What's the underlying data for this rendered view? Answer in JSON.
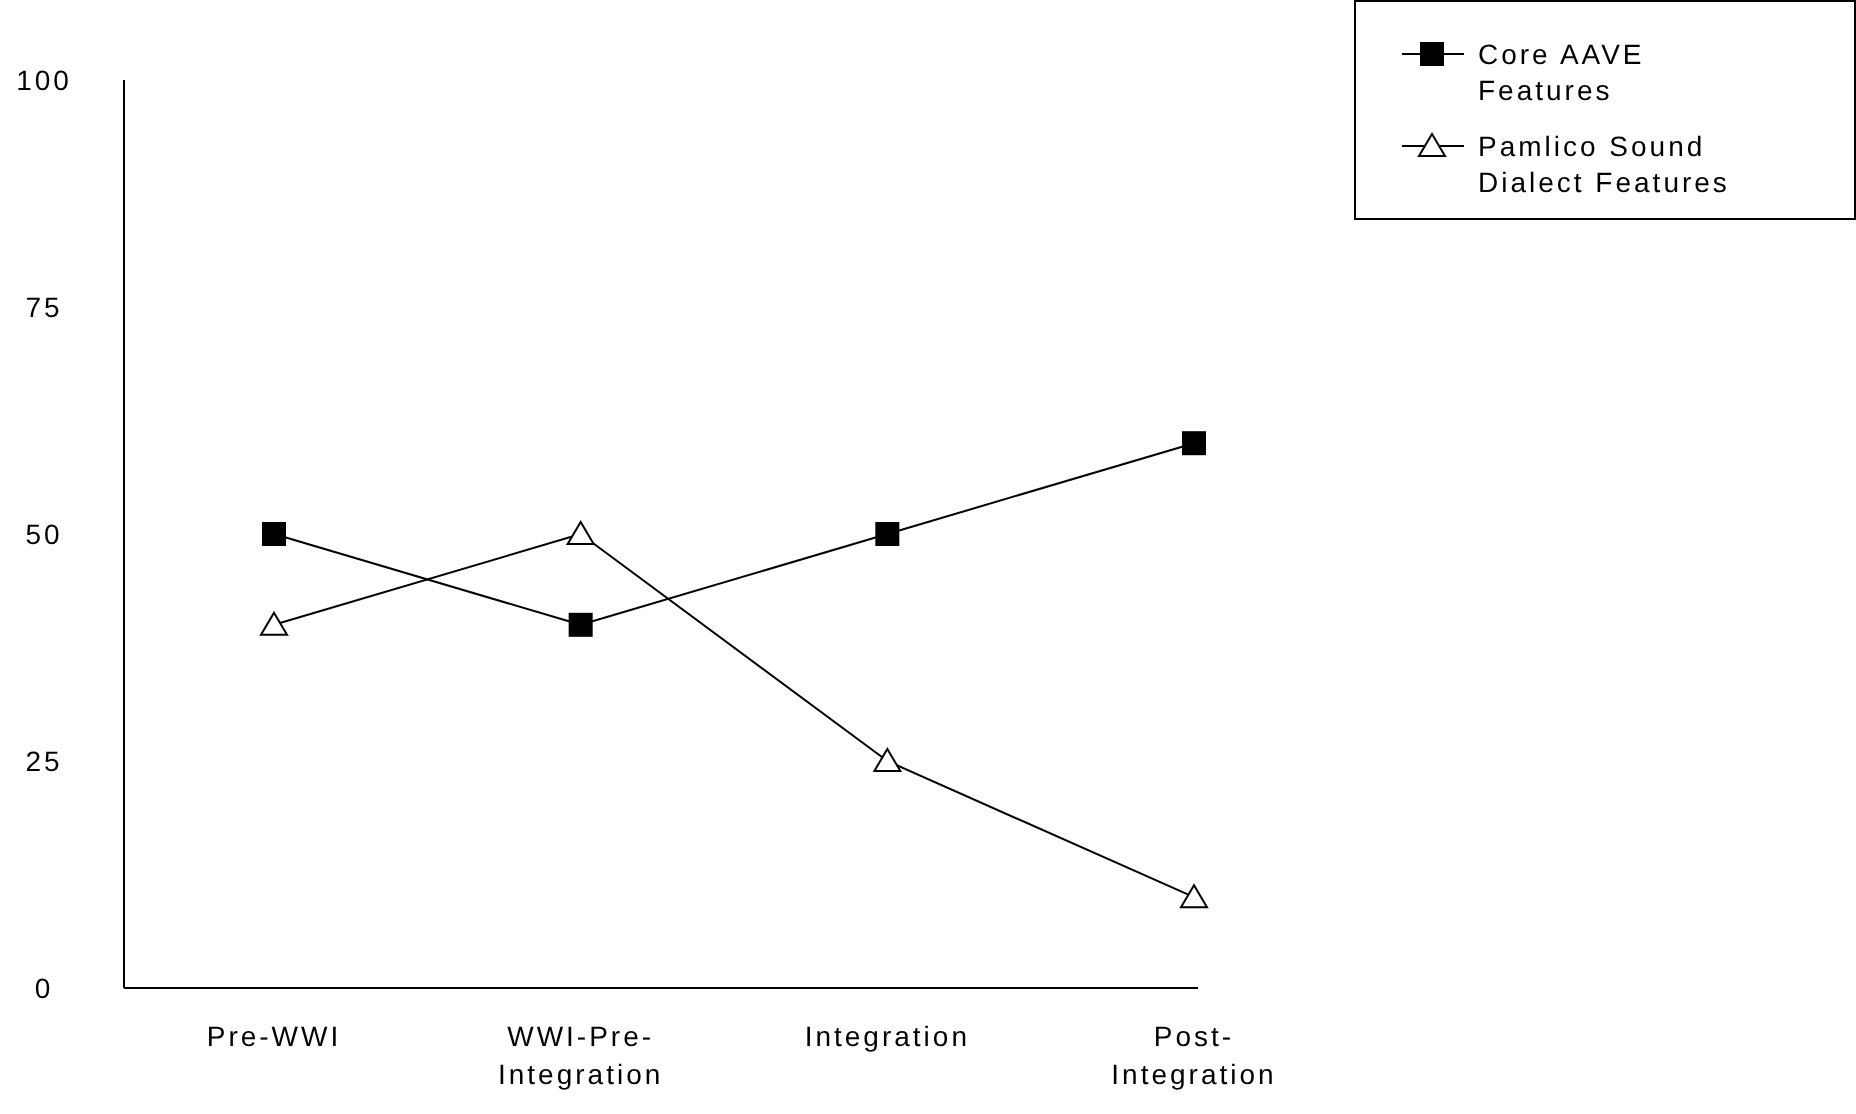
{
  "chart_data": {
    "type": "line",
    "categories": [
      "Pre-WWI",
      "WWI-Pre-Integration",
      "Integration",
      "Post-Integration"
    ],
    "series": [
      {
        "name": "Core AAVE Features",
        "color": "#000000",
        "marker": "square",
        "values": [
          50,
          40,
          50,
          60
        ]
      },
      {
        "name": "Pamlico Sound Dialect Features",
        "color": "#000000",
        "marker": "triangle",
        "values": [
          40,
          50,
          25,
          10
        ]
      }
    ],
    "ylim": [
      0,
      100
    ],
    "yticks": [
      0,
      25,
      50,
      75,
      100
    ],
    "legend": "top right",
    "line_style": "solid"
  }
}
